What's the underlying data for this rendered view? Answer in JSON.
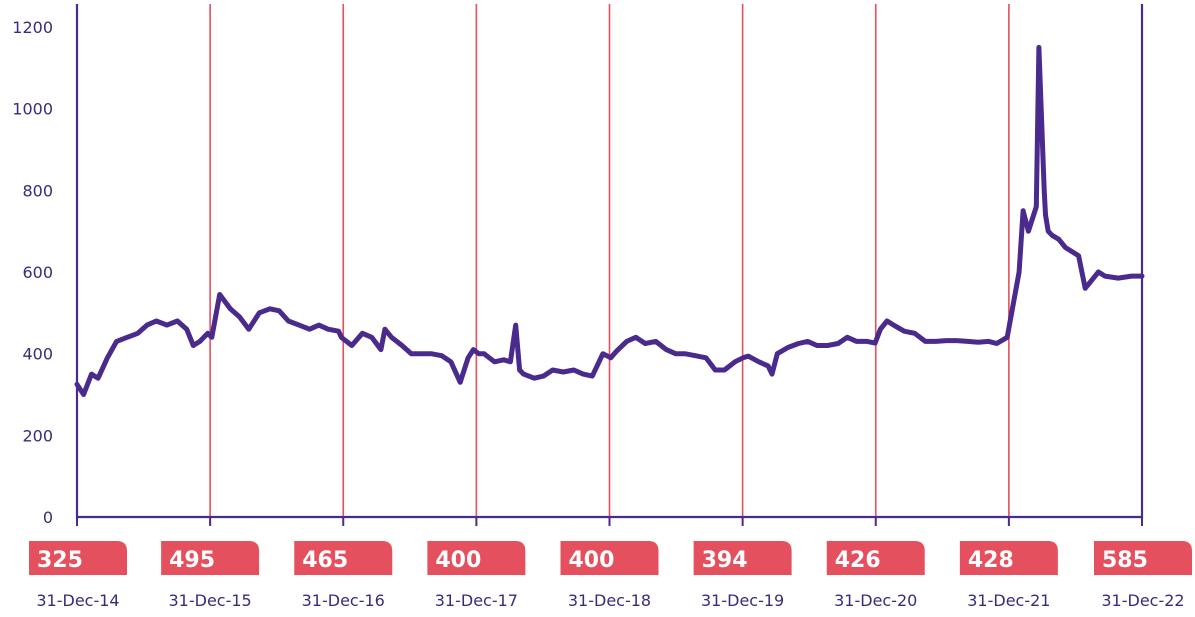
{
  "chart_data": {
    "type": "line",
    "ylim": [
      0,
      1200
    ],
    "yticks": [
      0,
      200,
      400,
      600,
      800,
      1000,
      1200
    ],
    "grid": false,
    "colors": {
      "line": "#4a2a8c",
      "axis": "#4a2a8c",
      "year_lines": "#e5505e",
      "badge": "#e5505e",
      "badge_text": "#ffffff",
      "text": "#3d2a7a"
    },
    "year_markers": [
      {
        "date": "31-Dec-14",
        "value": "325"
      },
      {
        "date": "31-Dec-15",
        "value": "495"
      },
      {
        "date": "31-Dec-16",
        "value": "465"
      },
      {
        "date": "31-Dec-17",
        "value": "400"
      },
      {
        "date": "31-Dec-18",
        "value": "400"
      },
      {
        "date": "31-Dec-19",
        "value": "394"
      },
      {
        "date": "31-Dec-20",
        "value": "426"
      },
      {
        "date": "31-Dec-21",
        "value": "428"
      },
      {
        "date": "31-Dec-22",
        "value": "585"
      }
    ],
    "series": [
      {
        "x": [
          2014.92,
          2014.97,
          2015.03,
          2015.08,
          2015.15,
          2015.22,
          2015.3,
          2015.38,
          2015.45,
          2015.52,
          2015.6,
          2015.68,
          2015.75,
          2015.8,
          2015.85,
          2015.88,
          2015.91,
          2015.94,
          2016.0,
          2016.08,
          2016.15,
          2016.22,
          2016.3,
          2016.38,
          2016.45,
          2016.52,
          2016.6,
          2016.68,
          2016.75,
          2016.82,
          2016.9,
          2016.92,
          2017.0,
          2017.08,
          2017.15,
          2017.22,
          2017.25,
          2017.3,
          2017.38,
          2017.45,
          2017.52,
          2017.6,
          2017.68,
          2017.75,
          2017.82,
          2017.88,
          2017.92,
          2017.96,
          2018.0,
          2018.08,
          2018.15,
          2018.2,
          2018.24,
          2018.27,
          2018.3,
          2018.38,
          2018.45,
          2018.52,
          2018.6,
          2018.68,
          2018.75,
          2018.82,
          2018.9,
          2018.96,
          2019.0,
          2019.08,
          2019.15,
          2019.22,
          2019.3,
          2019.38,
          2019.45,
          2019.52,
          2019.6,
          2019.68,
          2019.75,
          2019.82,
          2019.9,
          2019.96,
          2020.0,
          2020.08,
          2020.15,
          2020.18,
          2020.22,
          2020.3,
          2020.38,
          2020.45,
          2020.52,
          2020.6,
          2020.68,
          2020.75,
          2020.82,
          2020.9,
          2020.96,
          2021.0,
          2021.05,
          2021.1,
          2021.18,
          2021.26,
          2021.34,
          2021.42,
          2021.5,
          2021.58,
          2021.66,
          2021.74,
          2021.82,
          2021.88,
          2021.96,
          2022.05,
          2022.08,
          2022.12,
          2022.18,
          2022.2,
          2022.24,
          2022.25,
          2022.27,
          2022.3,
          2022.35,
          2022.4,
          2022.45,
          2022.5,
          2022.55,
          2022.6,
          2022.65,
          2022.7,
          2022.8,
          2022.9,
          2022.98
        ],
        "values": [
          325,
          300,
          350,
          340,
          390,
          430,
          440,
          450,
          470,
          480,
          470,
          480,
          460,
          420,
          430,
          440,
          450,
          440,
          545,
          510,
          490,
          460,
          500,
          510,
          505,
          480,
          470,
          460,
          470,
          460,
          455,
          440,
          420,
          450,
          440,
          410,
          460,
          440,
          420,
          400,
          400,
          400,
          395,
          380,
          330,
          390,
          410,
          400,
          400,
          380,
          385,
          380,
          470,
          360,
          350,
          340,
          345,
          360,
          355,
          360,
          350,
          345,
          400,
          390,
          405,
          430,
          440,
          425,
          430,
          410,
          400,
          400,
          395,
          390,
          360,
          360,
          380,
          390,
          394,
          380,
          370,
          350,
          400,
          415,
          425,
          430,
          420,
          420,
          425,
          440,
          430,
          430,
          426,
          460,
          480,
          470,
          455,
          450,
          430,
          430,
          432,
          432,
          430,
          428,
          430,
          425,
          440,
          600,
          750,
          700,
          760,
          1150,
          800,
          740,
          700,
          690,
          680,
          660,
          650,
          640,
          560,
          580,
          600,
          590,
          585,
          590,
          590
        ]
      }
    ]
  }
}
